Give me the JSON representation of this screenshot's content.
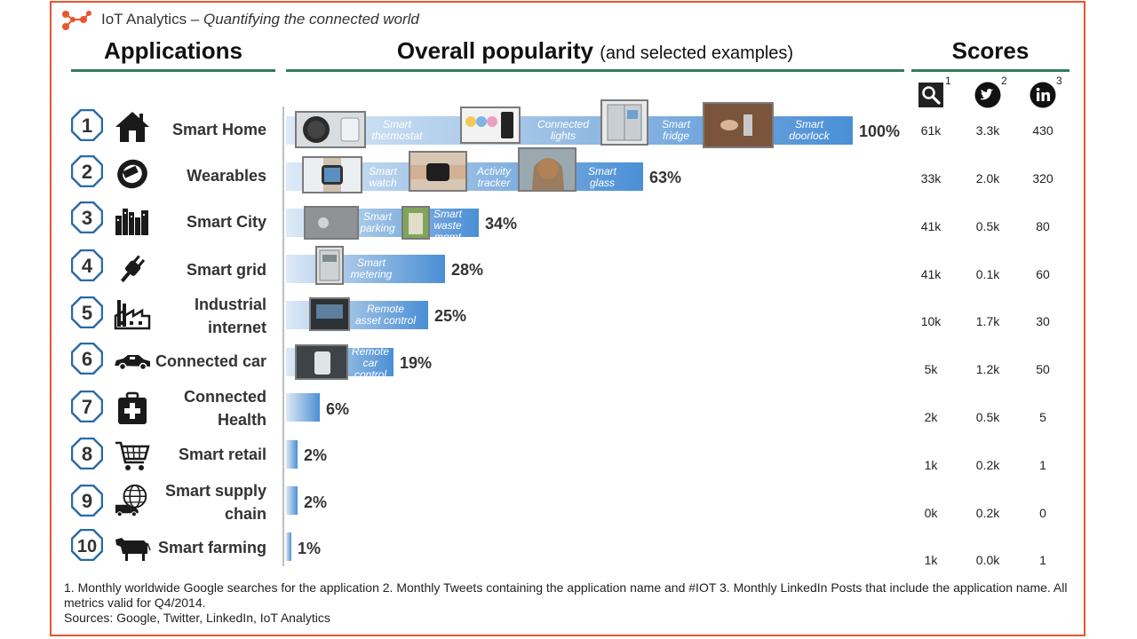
{
  "brand": {
    "name": "IoT Analytics",
    "separator": " – ",
    "tagline": "Quantifying the connected world"
  },
  "headers": {
    "applications": "Applications",
    "popularity": "Overall popularity",
    "popularity_sub": "(and selected examples)",
    "scores": "Scores"
  },
  "score_columns": [
    {
      "icon": "search-icon",
      "footnote": "1"
    },
    {
      "icon": "twitter-icon",
      "footnote": "2"
    },
    {
      "icon": "linkedin-icon",
      "footnote": "3"
    }
  ],
  "colors": {
    "frame": "#e8552e",
    "underline": "#2f7d5b",
    "rank": "#2a6aa6",
    "bar_end": "#4a8fd6"
  },
  "chart_data": {
    "type": "bar",
    "orientation": "horizontal",
    "categories": [
      "Smart Home",
      "Wearables",
      "Smart City",
      "Smart grid",
      "Industrial internet",
      "Connected car",
      "Connected Health",
      "Smart retail",
      "Smart supply chain",
      "Smart farming"
    ],
    "values": [
      100,
      63,
      34,
      28,
      25,
      19,
      6,
      2,
      2,
      1
    ],
    "xlim": [
      0,
      100
    ],
    "value_suffix": "%",
    "examples": [
      [
        "Smart thermostat",
        "Connected lights",
        "Smart fridge",
        "Smart doorlock"
      ],
      [
        "Smart watch",
        "Activity tracker",
        "Smart glass"
      ],
      [
        "Smart parking",
        "Smart waste mgmt"
      ],
      [
        "Smart metering"
      ],
      [
        "Remote asset control"
      ],
      [
        "Remote car control"
      ],
      [],
      [],
      [],
      []
    ]
  },
  "rows": [
    {
      "rank": "1",
      "name": [
        "Smart Home"
      ],
      "icon": "house-icon",
      "pct": "100%",
      "scores": [
        "61k",
        "3.3k",
        "430"
      ]
    },
    {
      "rank": "2",
      "name": [
        "Wearables"
      ],
      "icon": "wristband-icon",
      "pct": "63%",
      "scores": [
        "33k",
        "2.0k",
        "320"
      ]
    },
    {
      "rank": "3",
      "name": [
        "Smart City"
      ],
      "icon": "city-icon",
      "pct": "34%",
      "scores": [
        "41k",
        "0.5k",
        "80"
      ]
    },
    {
      "rank": "4",
      "name": [
        "Smart grid"
      ],
      "icon": "plug-icon",
      "pct": "28%",
      "scores": [
        "41k",
        "0.1k",
        "60"
      ]
    },
    {
      "rank": "5",
      "name": [
        "Industrial",
        "internet"
      ],
      "icon": "factory-icon",
      "pct": "25%",
      "scores": [
        "10k",
        "1.7k",
        "30"
      ]
    },
    {
      "rank": "6",
      "name": [
        "Connected car"
      ],
      "icon": "car-icon",
      "pct": "19%",
      "scores": [
        "5k",
        "1.2k",
        "50"
      ]
    },
    {
      "rank": "7",
      "name": [
        "Connected",
        "Health"
      ],
      "icon": "medical-kit-icon",
      "pct": "6%",
      "scores": [
        "2k",
        "0.5k",
        "5"
      ]
    },
    {
      "rank": "8",
      "name": [
        "Smart retail"
      ],
      "icon": "shopping-cart-icon",
      "pct": "2%",
      "scores": [
        "1k",
        "0.2k",
        "1"
      ]
    },
    {
      "rank": "9",
      "name": [
        "Smart supply",
        "chain"
      ],
      "icon": "globe-truck-icon",
      "pct": "2%",
      "scores": [
        "0k",
        "0.2k",
        "0"
      ]
    },
    {
      "rank": "10",
      "name": [
        "Smart farming"
      ],
      "icon": "cow-icon",
      "pct": "1%",
      "scores": [
        "1k",
        "0.0k",
        "1"
      ]
    }
  ],
  "examples": [
    [
      "Smart",
      "thermostat"
    ],
    [
      "Connected",
      "lights"
    ],
    [
      "Smart",
      "fridge"
    ],
    [
      "Smart",
      "doorlock"
    ],
    [
      "Smart",
      "watch"
    ],
    [
      "Activity",
      "tracker"
    ],
    [
      "Smart",
      "glass"
    ],
    [
      "Smart",
      "parking"
    ],
    [
      "Smart",
      "waste",
      "mgmt"
    ],
    [
      "Smart",
      "metering"
    ],
    [
      "Remote",
      "asset control"
    ],
    [
      "Remote",
      "car",
      "control"
    ]
  ],
  "footnote": {
    "line1": "1. Monthly worldwide Google searches for the application  2. Monthly Tweets containing the application name and #IOT  3. Monthly LinkedIn Posts that include the application name.  All metrics valid for Q4/2014.",
    "line2": "Sources: Google, Twitter, LinkedIn, IoT Analytics"
  }
}
